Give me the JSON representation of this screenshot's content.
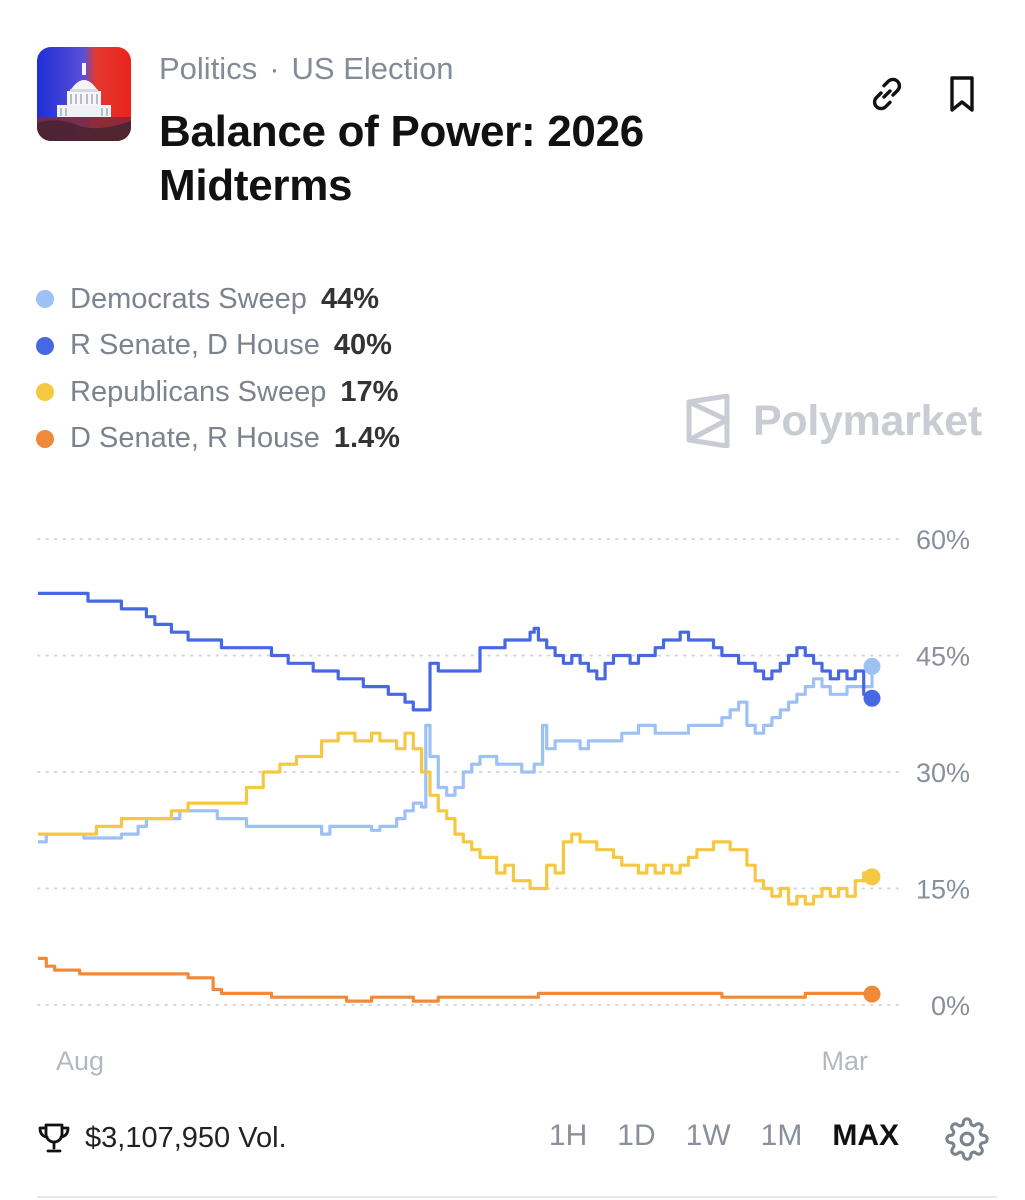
{
  "header": {
    "category": "Politics",
    "separator": "·",
    "subcategory": "US Election",
    "title": "Balance of Power: 2026 Midterms"
  },
  "legend": [
    {
      "name": "Democrats Sweep",
      "value": "44%",
      "color": "#9ec1f5"
    },
    {
      "name": "R Senate, D House",
      "value": "40%",
      "color": "#4768e3"
    },
    {
      "name": "Republicans Sweep",
      "value": "17%",
      "color": "#f5c842"
    },
    {
      "name": "D Senate, R House",
      "value": "1.4%",
      "color": "#f08a3a"
    }
  ],
  "watermark": {
    "text": "Polymarket"
  },
  "chart_data": {
    "type": "line",
    "x_labels": [
      "Aug",
      "Mar"
    ],
    "y_ticks": [
      60,
      45,
      30,
      15,
      0
    ],
    "y_tick_labels": [
      "60%",
      "45%",
      "30%",
      "15%",
      "0%"
    ],
    "ylim": [
      -2,
      62
    ],
    "x_range": [
      0,
      100
    ],
    "grid": "dotted horizontal",
    "series": [
      {
        "name": "Democrats Sweep",
        "color": "#9ec1f5",
        "end_marker": true,
        "points": [
          [
            0,
            21
          ],
          [
            1,
            22
          ],
          [
            5,
            22
          ],
          [
            5.5,
            21.5
          ],
          [
            10,
            22
          ],
          [
            12,
            23
          ],
          [
            13,
            24
          ],
          [
            17,
            25
          ],
          [
            21,
            25
          ],
          [
            21.5,
            24
          ],
          [
            24,
            24
          ],
          [
            25,
            23
          ],
          [
            29,
            23
          ],
          [
            34,
            22
          ],
          [
            35,
            23
          ],
          [
            40,
            22.5
          ],
          [
            41,
            23
          ],
          [
            43,
            24
          ],
          [
            44,
            25
          ],
          [
            45,
            26
          ],
          [
            46,
            25.5
          ],
          [
            46.5,
            36
          ],
          [
            47,
            32
          ],
          [
            48,
            28
          ],
          [
            49,
            27
          ],
          [
            50,
            28
          ],
          [
            51,
            30
          ],
          [
            52,
            31
          ],
          [
            53,
            32
          ],
          [
            55,
            31
          ],
          [
            56,
            31
          ],
          [
            57,
            31
          ],
          [
            58,
            30
          ],
          [
            59,
            30
          ],
          [
            59.5,
            31
          ],
          [
            60,
            31
          ],
          [
            60.5,
            36
          ],
          [
            61,
            33
          ],
          [
            62,
            34
          ],
          [
            65,
            33
          ],
          [
            66,
            34
          ],
          [
            69,
            34
          ],
          [
            70,
            35
          ],
          [
            71,
            35
          ],
          [
            72,
            36
          ],
          [
            73,
            36
          ],
          [
            74,
            35
          ],
          [
            76,
            35
          ],
          [
            77,
            35
          ],
          [
            78,
            36
          ],
          [
            80,
            36
          ],
          [
            82,
            37
          ],
          [
            83,
            38
          ],
          [
            84,
            39
          ],
          [
            85,
            36
          ],
          [
            86,
            35
          ],
          [
            87,
            36
          ],
          [
            88,
            37
          ],
          [
            89,
            38
          ],
          [
            90,
            39
          ],
          [
            91,
            40
          ],
          [
            92,
            41
          ],
          [
            93,
            42
          ],
          [
            94,
            41
          ],
          [
            95,
            40
          ],
          [
            96,
            40
          ],
          [
            97,
            41
          ],
          [
            98,
            41
          ],
          [
            99,
            41
          ],
          [
            100,
            43.6
          ]
        ]
      },
      {
        "name": "R Senate, D House",
        "color": "#4768e3",
        "end_marker": true,
        "points": [
          [
            0,
            53
          ],
          [
            3,
            53
          ],
          [
            6,
            52
          ],
          [
            9,
            52
          ],
          [
            10,
            51
          ],
          [
            11,
            51
          ],
          [
            13,
            50
          ],
          [
            14,
            49
          ],
          [
            16,
            48
          ],
          [
            18,
            47
          ],
          [
            20,
            47
          ],
          [
            22,
            46
          ],
          [
            25,
            46
          ],
          [
            28,
            45
          ],
          [
            30,
            44
          ],
          [
            33,
            43
          ],
          [
            36,
            42
          ],
          [
            39,
            41
          ],
          [
            42,
            40
          ],
          [
            44,
            39
          ],
          [
            45,
            38
          ],
          [
            46,
            38
          ],
          [
            47,
            44
          ],
          [
            48,
            43
          ],
          [
            52,
            43
          ],
          [
            53,
            46
          ],
          [
            56,
            47
          ],
          [
            58,
            47
          ],
          [
            59,
            48
          ],
          [
            59.5,
            48.5
          ],
          [
            60,
            47
          ],
          [
            61,
            46
          ],
          [
            62,
            45
          ],
          [
            63,
            44
          ],
          [
            64,
            45
          ],
          [
            65,
            44
          ],
          [
            66,
            43
          ],
          [
            67,
            42
          ],
          [
            68,
            44
          ],
          [
            69,
            45
          ],
          [
            70,
            45
          ],
          [
            71,
            44
          ],
          [
            72,
            45
          ],
          [
            74,
            46
          ],
          [
            75,
            47
          ],
          [
            76,
            47
          ],
          [
            77,
            48
          ],
          [
            78,
            47
          ],
          [
            80,
            47
          ],
          [
            81,
            46
          ],
          [
            82,
            45
          ],
          [
            83,
            45
          ],
          [
            84,
            44
          ],
          [
            85,
            44
          ],
          [
            86,
            43
          ],
          [
            87,
            42
          ],
          [
            88,
            43
          ],
          [
            89,
            44
          ],
          [
            90,
            45
          ],
          [
            91,
            46
          ],
          [
            92,
            45
          ],
          [
            93,
            44
          ],
          [
            94,
            43
          ],
          [
            95,
            42
          ],
          [
            96,
            43
          ],
          [
            97,
            42
          ],
          [
            98,
            43
          ],
          [
            99,
            40
          ],
          [
            100,
            39.5
          ]
        ]
      },
      {
        "name": "Republicans Sweep",
        "color": "#f5c842",
        "end_marker": true,
        "points": [
          [
            0,
            22
          ],
          [
            5,
            22
          ],
          [
            7,
            23
          ],
          [
            9,
            23
          ],
          [
            10,
            24
          ],
          [
            12,
            24
          ],
          [
            16,
            25
          ],
          [
            18,
            26
          ],
          [
            22,
            26
          ],
          [
            25,
            28
          ],
          [
            27,
            30
          ],
          [
            29,
            31
          ],
          [
            31,
            32
          ],
          [
            34,
            34
          ],
          [
            36,
            35
          ],
          [
            38,
            34
          ],
          [
            40,
            35
          ],
          [
            41,
            34
          ],
          [
            42,
            34
          ],
          [
            43,
            33
          ],
          [
            44,
            35
          ],
          [
            45,
            33
          ],
          [
            46,
            30
          ],
          [
            47,
            27
          ],
          [
            48,
            25
          ],
          [
            49,
            24
          ],
          [
            50,
            22
          ],
          [
            51,
            21
          ],
          [
            52,
            20
          ],
          [
            53,
            19
          ],
          [
            54,
            19
          ],
          [
            55,
            17
          ],
          [
            56,
            18
          ],
          [
            57,
            16
          ],
          [
            58,
            16
          ],
          [
            59,
            15
          ],
          [
            60,
            15
          ],
          [
            61,
            18
          ],
          [
            62,
            17
          ],
          [
            63,
            21
          ],
          [
            64,
            22
          ],
          [
            65,
            21
          ],
          [
            66,
            21
          ],
          [
            67,
            20
          ],
          [
            68,
            20
          ],
          [
            69,
            19
          ],
          [
            70,
            18
          ],
          [
            71,
            18
          ],
          [
            72,
            17
          ],
          [
            73,
            18
          ],
          [
            74,
            17
          ],
          [
            75,
            18
          ],
          [
            76,
            17
          ],
          [
            77,
            18
          ],
          [
            78,
            19
          ],
          [
            79,
            20
          ],
          [
            80,
            20
          ],
          [
            81,
            21
          ],
          [
            82,
            21
          ],
          [
            83,
            20
          ],
          [
            84,
            20
          ],
          [
            85,
            18
          ],
          [
            86,
            16
          ],
          [
            87,
            15
          ],
          [
            88,
            14
          ],
          [
            89,
            15
          ],
          [
            90,
            13
          ],
          [
            91,
            14
          ],
          [
            92,
            13
          ],
          [
            93,
            14
          ],
          [
            94,
            15
          ],
          [
            95,
            14
          ],
          [
            96,
            15
          ],
          [
            97,
            14
          ],
          [
            98,
            16
          ],
          [
            99,
            17
          ],
          [
            100,
            16.5
          ]
        ]
      },
      {
        "name": "D Senate, R House",
        "color": "#f08a3a",
        "end_marker": true,
        "points": [
          [
            0,
            6
          ],
          [
            1,
            5
          ],
          [
            2,
            4.5
          ],
          [
            5,
            4
          ],
          [
            10,
            4
          ],
          [
            12,
            4
          ],
          [
            15,
            4
          ],
          [
            18,
            3.5
          ],
          [
            20,
            3.5
          ],
          [
            21,
            2
          ],
          [
            22,
            1.5
          ],
          [
            25,
            1.5
          ],
          [
            28,
            1
          ],
          [
            31,
            1
          ],
          [
            35,
            1
          ],
          [
            37,
            0.5
          ],
          [
            40,
            1
          ],
          [
            45,
            0.5
          ],
          [
            48,
            1
          ],
          [
            50,
            1
          ],
          [
            55,
            1
          ],
          [
            60,
            1.5
          ],
          [
            65,
            1.5
          ],
          [
            70,
            1.5
          ],
          [
            75,
            1.5
          ],
          [
            80,
            1.5
          ],
          [
            82,
            1
          ],
          [
            85,
            1
          ],
          [
            88,
            1
          ],
          [
            90,
            1
          ],
          [
            92,
            1.5
          ],
          [
            95,
            1.5
          ],
          [
            98,
            1.5
          ],
          [
            100,
            1.4
          ]
        ]
      }
    ]
  },
  "footer": {
    "volume": "$3,107,950 Vol.",
    "ranges": [
      "1H",
      "1D",
      "1W",
      "1M",
      "MAX"
    ],
    "active_range": "MAX"
  }
}
